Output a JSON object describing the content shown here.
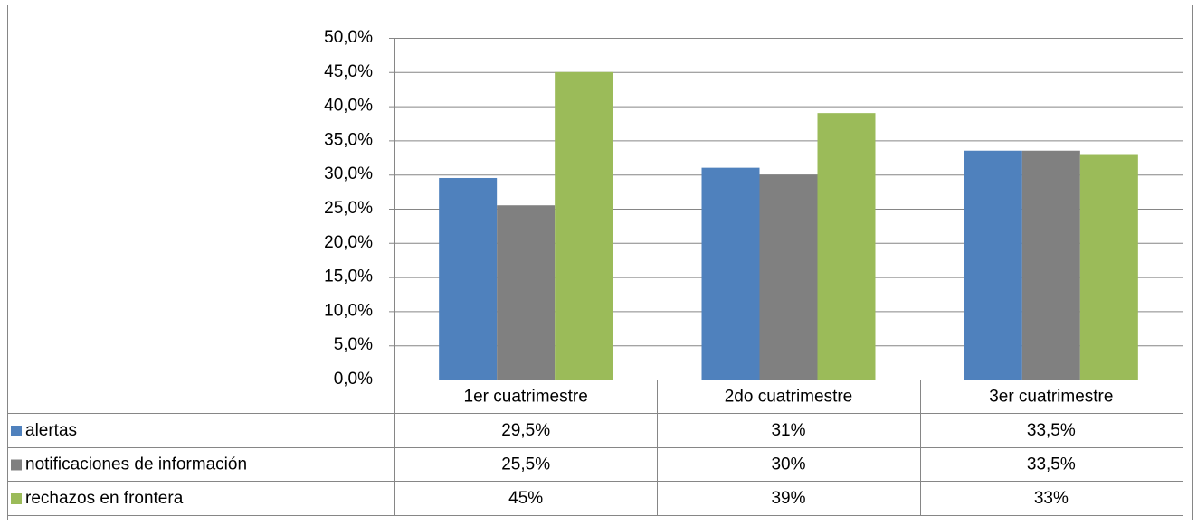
{
  "chart_data": {
    "type": "bar",
    "categories": [
      "1er cuatrimestre",
      "2do cuatrimestre",
      "3er cuatrimestre"
    ],
    "series": [
      {
        "name": "alertas",
        "color": "#4f81bd",
        "values": [
          29.5,
          31,
          33.5
        ],
        "value_labels": [
          "29,5%",
          "31%",
          "33,5%"
        ]
      },
      {
        "name": "notificaciones de información",
        "color": "#808080",
        "values": [
          25.5,
          30,
          33.5
        ],
        "value_labels": [
          "25,5%",
          "30%",
          "33,5%"
        ]
      },
      {
        "name": "rechazos en frontera",
        "color": "#9bbb59",
        "values": [
          45,
          39,
          33
        ],
        "value_labels": [
          "45%",
          "39%",
          "33%"
        ]
      }
    ],
    "ylim": [
      0,
      50
    ],
    "yticks": [
      {
        "value": 0,
        "label": "0,0%"
      },
      {
        "value": 5,
        "label": "5,0%"
      },
      {
        "value": 10,
        "label": "10,0%"
      },
      {
        "value": 15,
        "label": "15,0%"
      },
      {
        "value": 20,
        "label": "20,0%"
      },
      {
        "value": 25,
        "label": "25,0%"
      },
      {
        "value": 30,
        "label": "30,0%"
      },
      {
        "value": 35,
        "label": "35,0%"
      },
      {
        "value": 40,
        "label": "40,0%"
      },
      {
        "value": 45,
        "label": "45,0%"
      },
      {
        "value": 50,
        "label": "50,0%"
      }
    ],
    "grid": true,
    "legend": "table"
  }
}
